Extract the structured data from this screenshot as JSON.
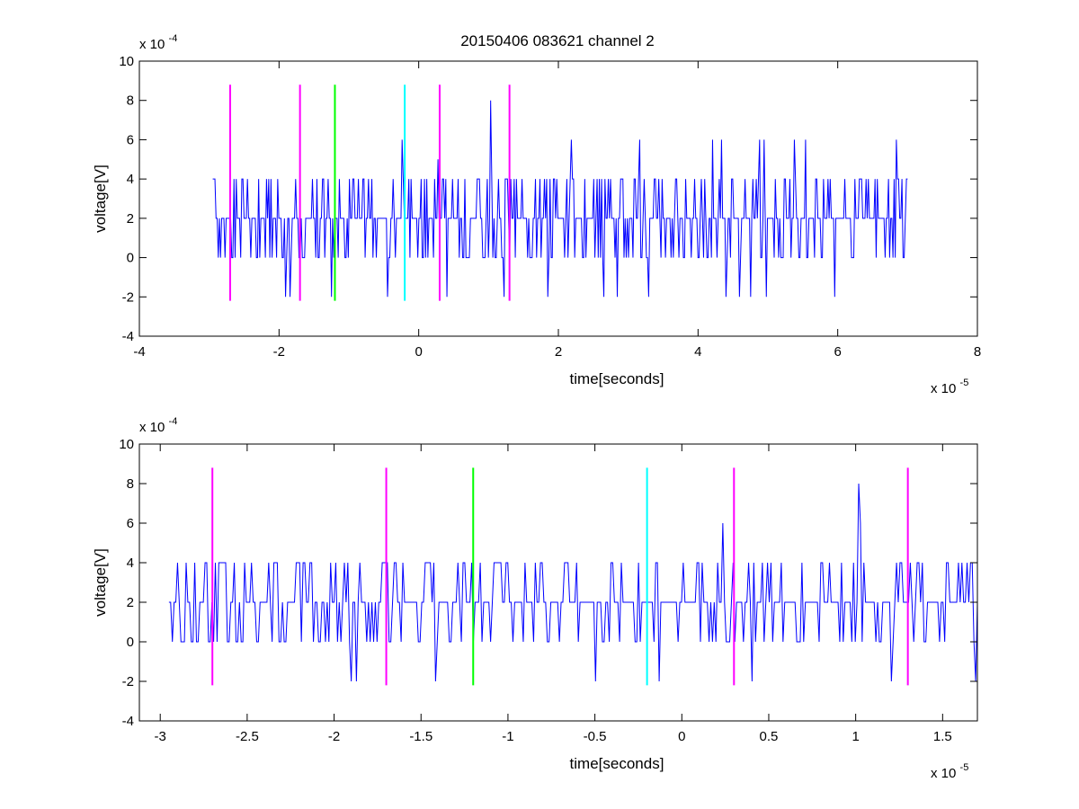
{
  "title": "20150406 083621 channel 2",
  "colors": {
    "trace": "#0000ff",
    "magenta": "#ff00ff",
    "green": "#00ff00",
    "cyan": "#00ffff",
    "axes": "#000000",
    "background": "#ffffff"
  },
  "chart_data": [
    {
      "type": "line",
      "title": "20150406 083621 channel 2",
      "xlabel": "time[seconds]",
      "ylabel": "voltage[V]",
      "x_multiplier_label": "x 10",
      "x_multiplier_exp": "-5",
      "y_multiplier_label": "x 10",
      "y_multiplier_exp": "-4",
      "xlim": [
        -4,
        8
      ],
      "ylim": [
        -4,
        10
      ],
      "xticks": [
        -4,
        -2,
        0,
        2,
        4,
        6,
        8
      ],
      "xtick_labels": [
        "-4",
        "-2",
        "0",
        "2",
        "4",
        "6",
        "8"
      ],
      "yticks": [
        -4,
        -2,
        0,
        2,
        4,
        6,
        8,
        10
      ],
      "ytick_labels": [
        "-4",
        "-2",
        "0",
        "2",
        "4",
        "6",
        "8",
        "10"
      ],
      "grid": false,
      "series_x_range": [
        -2.95,
        7.0
      ],
      "series": [
        {
          "color": "#0000ff",
          "levels": [
            -2,
            0,
            2,
            4,
            6,
            8
          ],
          "peaks": [
            [
              -0.23,
              6
            ],
            [
              0.27,
              5
            ],
            [
              1.03,
              8
            ],
            [
              2.18,
              6
            ],
            [
              3.17,
              6
            ],
            [
              4.21,
              6
            ],
            [
              4.33,
              6
            ],
            [
              4.88,
              6
            ],
            [
              4.94,
              6
            ],
            [
              5.38,
              6
            ],
            [
              5.54,
              6
            ],
            [
              6.84,
              6
            ]
          ],
          "dips": [
            [
              -1.9,
              -2
            ],
            [
              -1.85,
              -2
            ],
            [
              -1.25,
              -2
            ],
            [
              -0.45,
              -2
            ],
            [
              0.4,
              -2
            ],
            [
              1.22,
              -2
            ],
            [
              1.85,
              -2
            ],
            [
              2.65,
              -2
            ],
            [
              2.85,
              -2
            ],
            [
              3.3,
              -2
            ],
            [
              4.4,
              -2
            ],
            [
              4.6,
              -2
            ],
            [
              4.75,
              -2
            ],
            [
              4.98,
              -2
            ],
            [
              5.95,
              -2
            ]
          ]
        }
      ],
      "vertical_markers": [
        {
          "x": -2.7,
          "color": "#ff00ff",
          "y_range": [
            -2.2,
            8.8
          ]
        },
        {
          "x": -1.7,
          "color": "#ff00ff",
          "y_range": [
            -2.2,
            8.8
          ]
        },
        {
          "x": -1.2,
          "color": "#00ff00",
          "y_range": [
            -2.2,
            8.8
          ]
        },
        {
          "x": -0.2,
          "color": "#00ffff",
          "y_range": [
            -2.2,
            8.8
          ]
        },
        {
          "x": 0.3,
          "color": "#ff00ff",
          "y_range": [
            -2.2,
            8.8
          ]
        },
        {
          "x": 1.3,
          "color": "#ff00ff",
          "y_range": [
            -2.2,
            8.8
          ]
        }
      ]
    },
    {
      "type": "line",
      "title": "",
      "xlabel": "time[seconds]",
      "ylabel": "voltage[V]",
      "x_multiplier_label": "x 10",
      "x_multiplier_exp": "-5",
      "y_multiplier_label": "x 10",
      "y_multiplier_exp": "-4",
      "xlim": [
        -3.12,
        1.7
      ],
      "ylim": [
        -4,
        10
      ],
      "xticks": [
        -3,
        -2.5,
        -2,
        -1.5,
        -1,
        -0.5,
        0,
        0.5,
        1,
        1.5
      ],
      "xtick_labels": [
        "-3",
        "-2.5",
        "-2",
        "-1.5",
        "-1",
        "-0.5",
        "0",
        "0.5",
        "1",
        "1.5"
      ],
      "yticks": [
        -4,
        -2,
        0,
        2,
        4,
        6,
        8,
        10
      ],
      "ytick_labels": [
        "-4",
        "-2",
        "0",
        "2",
        "4",
        "6",
        "8",
        "10"
      ],
      "grid": false,
      "series_x_range": [
        -2.95,
        1.7
      ],
      "series": [
        {
          "color": "#0000ff",
          "levels": [
            -2,
            0,
            2,
            4,
            6,
            8
          ],
          "peaks": [
            [
              0.24,
              6
            ],
            [
              1.02,
              8
            ],
            [
              1.03,
              6
            ]
          ],
          "dips": [
            [
              -1.9,
              -2
            ],
            [
              -1.87,
              -2
            ],
            [
              -1.42,
              -2
            ],
            [
              -0.5,
              -2
            ],
            [
              -0.13,
              -2
            ],
            [
              0.4,
              -2
            ],
            [
              1.21,
              -2
            ],
            [
              1.69,
              -2
            ]
          ]
        }
      ],
      "vertical_markers": [
        {
          "x": -2.7,
          "color": "#ff00ff",
          "y_range": [
            -2.2,
            8.8
          ]
        },
        {
          "x": -1.7,
          "color": "#ff00ff",
          "y_range": [
            -2.2,
            8.8
          ]
        },
        {
          "x": -1.2,
          "color": "#00ff00",
          "y_range": [
            -2.2,
            8.8
          ]
        },
        {
          "x": -0.2,
          "color": "#00ffff",
          "y_range": [
            -2.2,
            8.8
          ]
        },
        {
          "x": 0.3,
          "color": "#ff00ff",
          "y_range": [
            -2.2,
            8.8
          ]
        },
        {
          "x": 1.3,
          "color": "#ff00ff",
          "y_range": [
            -2.2,
            8.8
          ]
        }
      ]
    }
  ]
}
